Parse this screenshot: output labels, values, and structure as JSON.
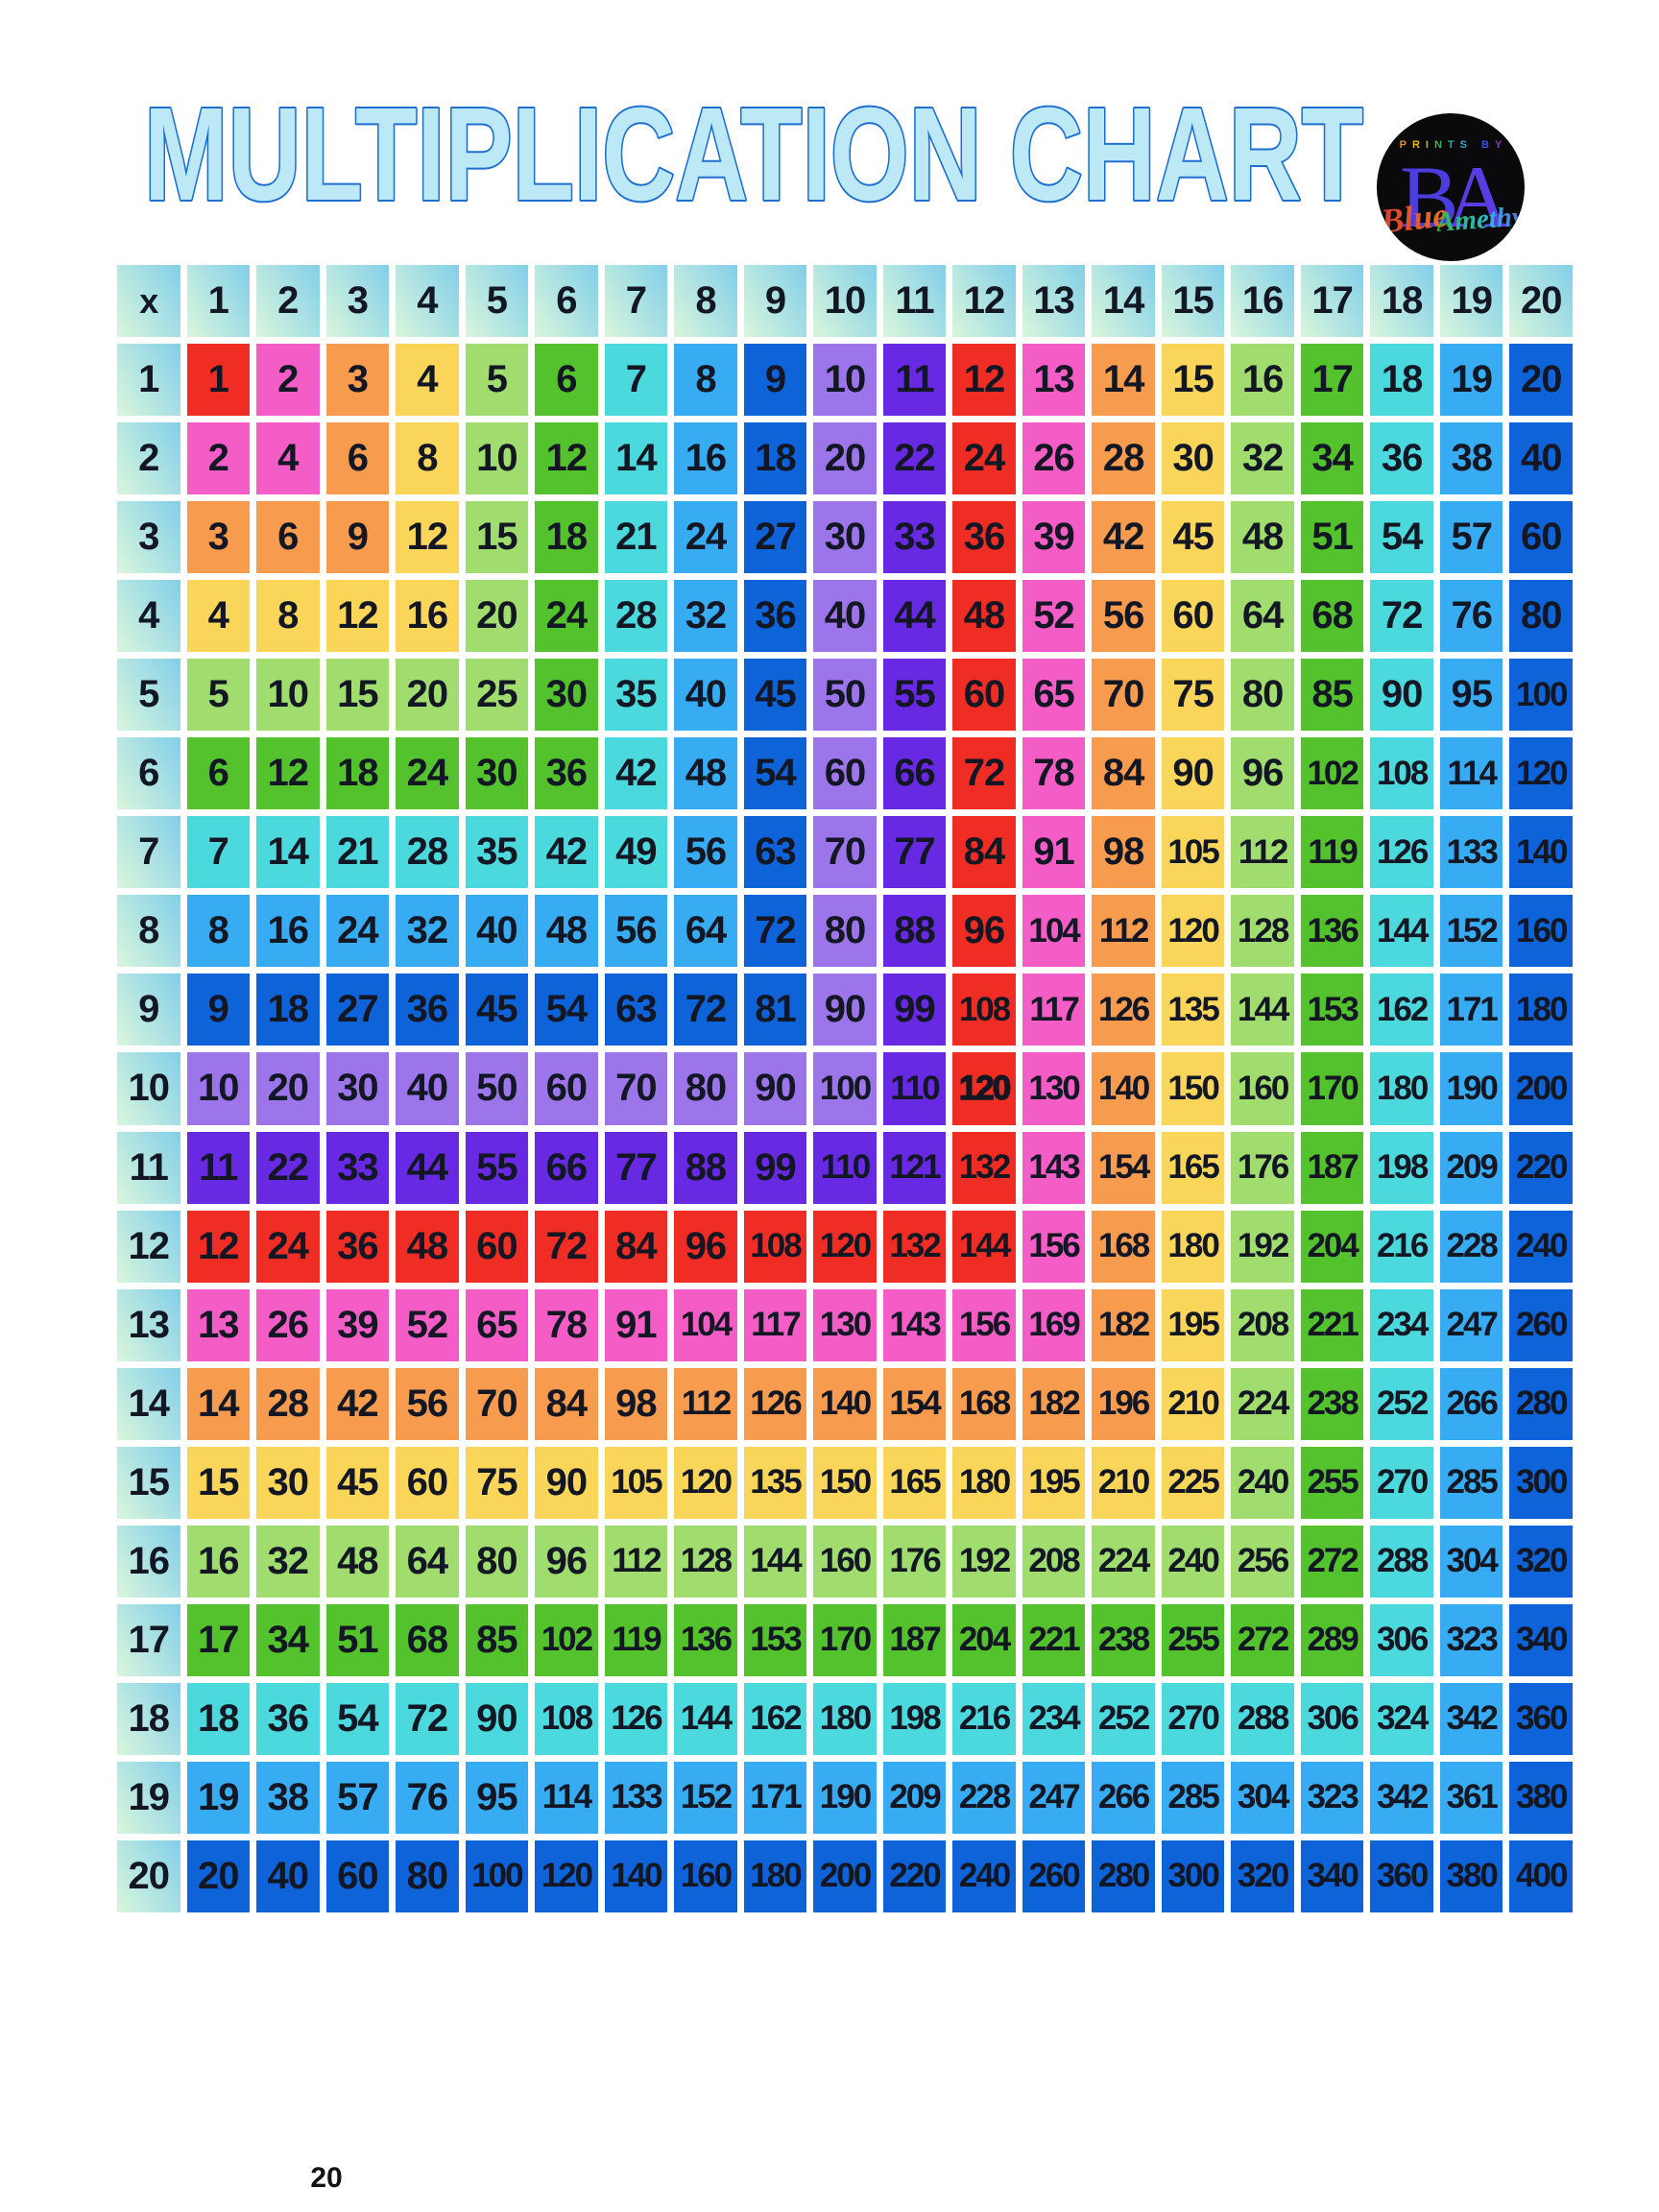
{
  "title": "MULTIPLICATION CHART",
  "logo": {
    "top_text": "PRINTS BY",
    "monogram_b": "B",
    "monogram_a": "A",
    "script_word_1": "Blue",
    "script_word_2": "Amethyst"
  },
  "footer": {
    "page_number": "20"
  },
  "colors": {
    "background": "#FFFFFF",
    "text": "#131723",
    "title_fill": "#BDE9F6",
    "title_stroke": "#1E6FD2",
    "header_gradient": [
      "#DAF6DC",
      "#82CFE9"
    ],
    "palette_cycle": [
      "#EF2D24",
      "#F45CC6",
      "#F79B4E",
      "#F9D65A",
      "#A0DC6E",
      "#54C22D",
      "#4BD9DE",
      "#37ACF2",
      "#0F63D8",
      "#9B75E9",
      "#6729E1"
    ],
    "color_rule": "cell background = palette_cycle[(max(row,col)-1) mod 11]"
  },
  "emphasis_cell": {
    "row": 10,
    "col": 12
  },
  "table": {
    "corner_label": "x",
    "col_headers": [
      1,
      2,
      3,
      4,
      5,
      6,
      7,
      8,
      9,
      10,
      11,
      12,
      13,
      14,
      15,
      16,
      17,
      18,
      19,
      20
    ],
    "row_headers": [
      1,
      2,
      3,
      4,
      5,
      6,
      7,
      8,
      9,
      10,
      11,
      12,
      13,
      14,
      15,
      16,
      17,
      18,
      19,
      20
    ],
    "rows": [
      [
        1,
        2,
        3,
        4,
        5,
        6,
        7,
        8,
        9,
        10,
        11,
        12,
        13,
        14,
        15,
        16,
        17,
        18,
        19,
        20
      ],
      [
        2,
        4,
        6,
        8,
        10,
        12,
        14,
        16,
        18,
        20,
        22,
        24,
        26,
        28,
        30,
        32,
        34,
        36,
        38,
        40
      ],
      [
        3,
        6,
        9,
        12,
        15,
        18,
        21,
        24,
        27,
        30,
        33,
        36,
        39,
        42,
        45,
        48,
        51,
        54,
        57,
        60
      ],
      [
        4,
        8,
        12,
        16,
        20,
        24,
        28,
        32,
        36,
        40,
        44,
        48,
        52,
        56,
        60,
        64,
        68,
        72,
        76,
        80
      ],
      [
        5,
        10,
        15,
        20,
        25,
        30,
        35,
        40,
        45,
        50,
        55,
        60,
        65,
        70,
        75,
        80,
        85,
        90,
        95,
        100
      ],
      [
        6,
        12,
        18,
        24,
        30,
        36,
        42,
        48,
        54,
        60,
        66,
        72,
        78,
        84,
        90,
        96,
        102,
        108,
        114,
        120
      ],
      [
        7,
        14,
        21,
        28,
        35,
        42,
        49,
        56,
        63,
        70,
        77,
        84,
        91,
        98,
        105,
        112,
        119,
        126,
        133,
        140
      ],
      [
        8,
        16,
        24,
        32,
        40,
        48,
        56,
        64,
        72,
        80,
        88,
        96,
        104,
        112,
        120,
        128,
        136,
        144,
        152,
        160
      ],
      [
        9,
        18,
        27,
        36,
        45,
        54,
        63,
        72,
        81,
        90,
        99,
        108,
        117,
        126,
        135,
        144,
        153,
        162,
        171,
        180
      ],
      [
        10,
        20,
        30,
        40,
        50,
        60,
        70,
        80,
        90,
        100,
        110,
        120,
        130,
        140,
        150,
        160,
        170,
        180,
        190,
        200
      ],
      [
        11,
        22,
        33,
        44,
        55,
        66,
        77,
        88,
        99,
        110,
        121,
        132,
        143,
        154,
        165,
        176,
        187,
        198,
        209,
        220
      ],
      [
        12,
        24,
        36,
        48,
        60,
        72,
        84,
        96,
        108,
        120,
        132,
        144,
        156,
        168,
        180,
        192,
        204,
        216,
        228,
        240
      ],
      [
        13,
        26,
        39,
        52,
        65,
        78,
        91,
        104,
        117,
        130,
        143,
        156,
        169,
        182,
        195,
        208,
        221,
        234,
        247,
        260
      ],
      [
        14,
        28,
        42,
        56,
        70,
        84,
        98,
        112,
        126,
        140,
        154,
        168,
        182,
        196,
        210,
        224,
        238,
        252,
        266,
        280
      ],
      [
        15,
        30,
        45,
        60,
        75,
        90,
        105,
        120,
        135,
        150,
        165,
        180,
        195,
        210,
        225,
        240,
        255,
        270,
        285,
        300
      ],
      [
        16,
        32,
        48,
        64,
        80,
        96,
        112,
        128,
        144,
        160,
        176,
        192,
        208,
        224,
        240,
        256,
        272,
        288,
        304,
        320
      ],
      [
        17,
        34,
        51,
        68,
        85,
        102,
        119,
        136,
        153,
        170,
        187,
        204,
        221,
        238,
        255,
        272,
        289,
        306,
        323,
        340
      ],
      [
        18,
        36,
        54,
        72,
        90,
        108,
        126,
        144,
        162,
        180,
        198,
        216,
        234,
        252,
        270,
        288,
        306,
        324,
        342,
        360
      ],
      [
        19,
        38,
        57,
        76,
        95,
        114,
        133,
        152,
        171,
        190,
        209,
        228,
        247,
        266,
        285,
        304,
        323,
        342,
        361,
        380
      ],
      [
        20,
        40,
        60,
        80,
        100,
        120,
        140,
        160,
        180,
        200,
        220,
        240,
        260,
        280,
        300,
        320,
        340,
        360,
        380,
        400
      ]
    ]
  }
}
